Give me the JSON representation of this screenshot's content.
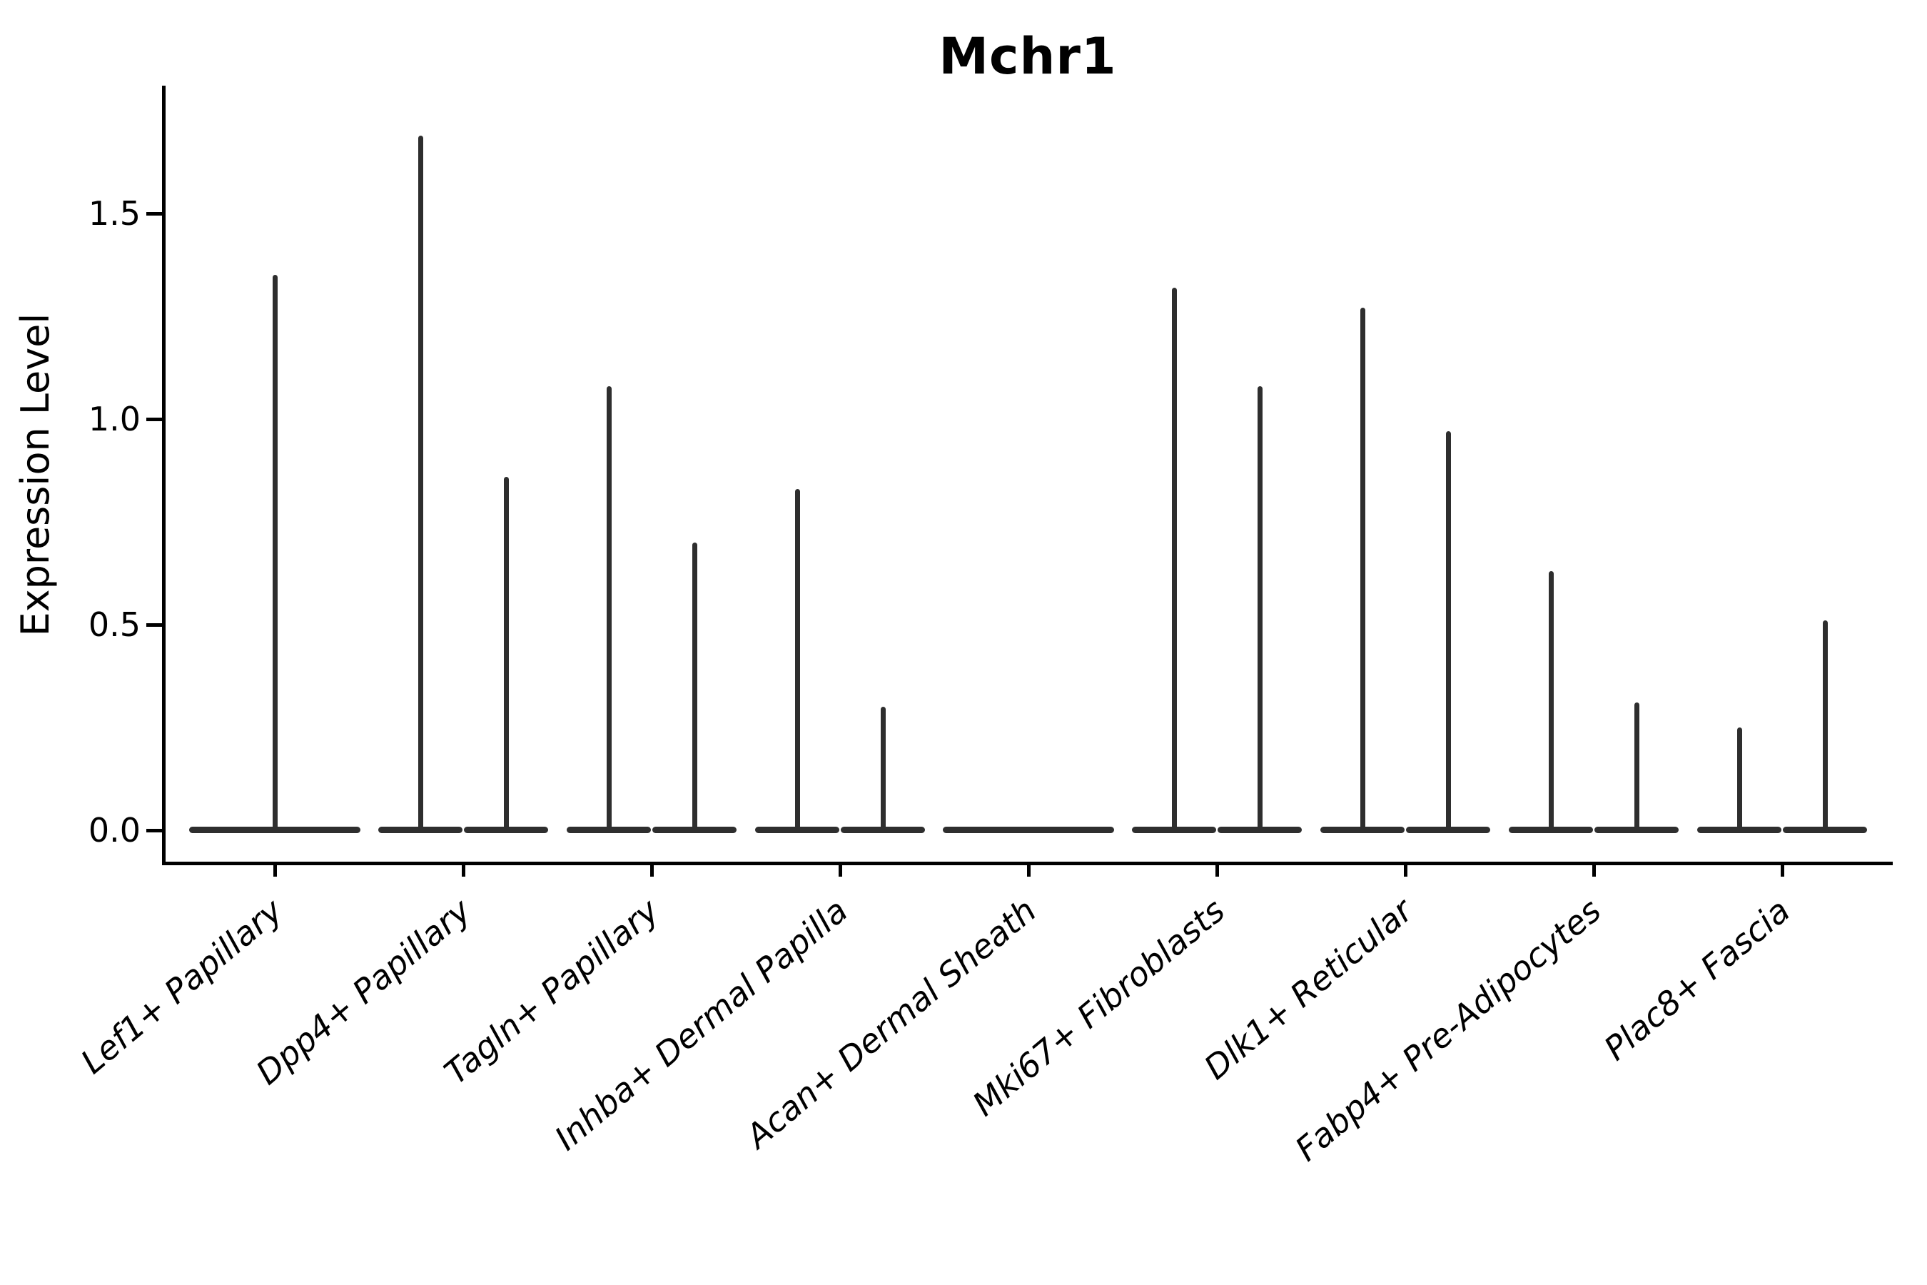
{
  "figure": {
    "title": "Mchr1",
    "ylabel": "Expression Level"
  },
  "chart_data": {
    "type": "violin",
    "title": "Mchr1",
    "xlabel": "",
    "ylabel": "Expression Level",
    "ylim": [
      -0.08,
      1.78
    ],
    "ytick_labels": [
      "0.0",
      "0.5",
      "1.0",
      "1.5"
    ],
    "ytick_values": [
      0.0,
      0.5,
      1.0,
      1.5
    ],
    "grid": false,
    "legend_position": "none",
    "violin_color": "#2e2e2e",
    "axis_color": "#000000",
    "categories": [
      "Lef1+ Papillary",
      "Dpp4+ Papillary",
      "Tagln+ Papillary",
      "Inhba+ Dermal Papilla",
      "Acan+ Dermal Sheath",
      "Mki67+ Fibroblasts",
      "Dlk1+ Reticular",
      "Fabp4+ Pre-Adipocytes",
      "Plac8+ Fascia"
    ],
    "series": [
      {
        "category": "Lef1+ Papillary",
        "layout": "single",
        "violin_maxima": [
          1.35
        ]
      },
      {
        "category": "Dpp4+ Papillary",
        "layout": "pair",
        "violin_maxima": [
          1.69,
          0.86
        ]
      },
      {
        "category": "Tagln+ Papillary",
        "layout": "pair",
        "violin_maxima": [
          1.08,
          0.7
        ]
      },
      {
        "category": "Inhba+ Dermal Papilla",
        "layout": "pair",
        "violin_maxima": [
          0.83,
          0.3
        ]
      },
      {
        "category": "Acan+ Dermal Sheath",
        "layout": "single",
        "violin_maxima": [
          0.0
        ]
      },
      {
        "category": "Mki67+ Fibroblasts",
        "layout": "pair",
        "violin_maxima": [
          1.32,
          1.08
        ]
      },
      {
        "category": "Dlk1+ Reticular",
        "layout": "pair",
        "violin_maxima": [
          1.27,
          0.97
        ]
      },
      {
        "category": "Fabp4+ Pre-Adipocytes",
        "layout": "pair",
        "violin_maxima": [
          0.63,
          0.31
        ]
      },
      {
        "category": "Plac8+ Fascia",
        "layout": "pair",
        "violin_maxima": [
          0.25,
          0.51
        ]
      }
    ],
    "note": "Violin densities are collapsed at expression 0; each violin shows a flat base at 0 with a thin spike up to its maximum expression value."
  }
}
